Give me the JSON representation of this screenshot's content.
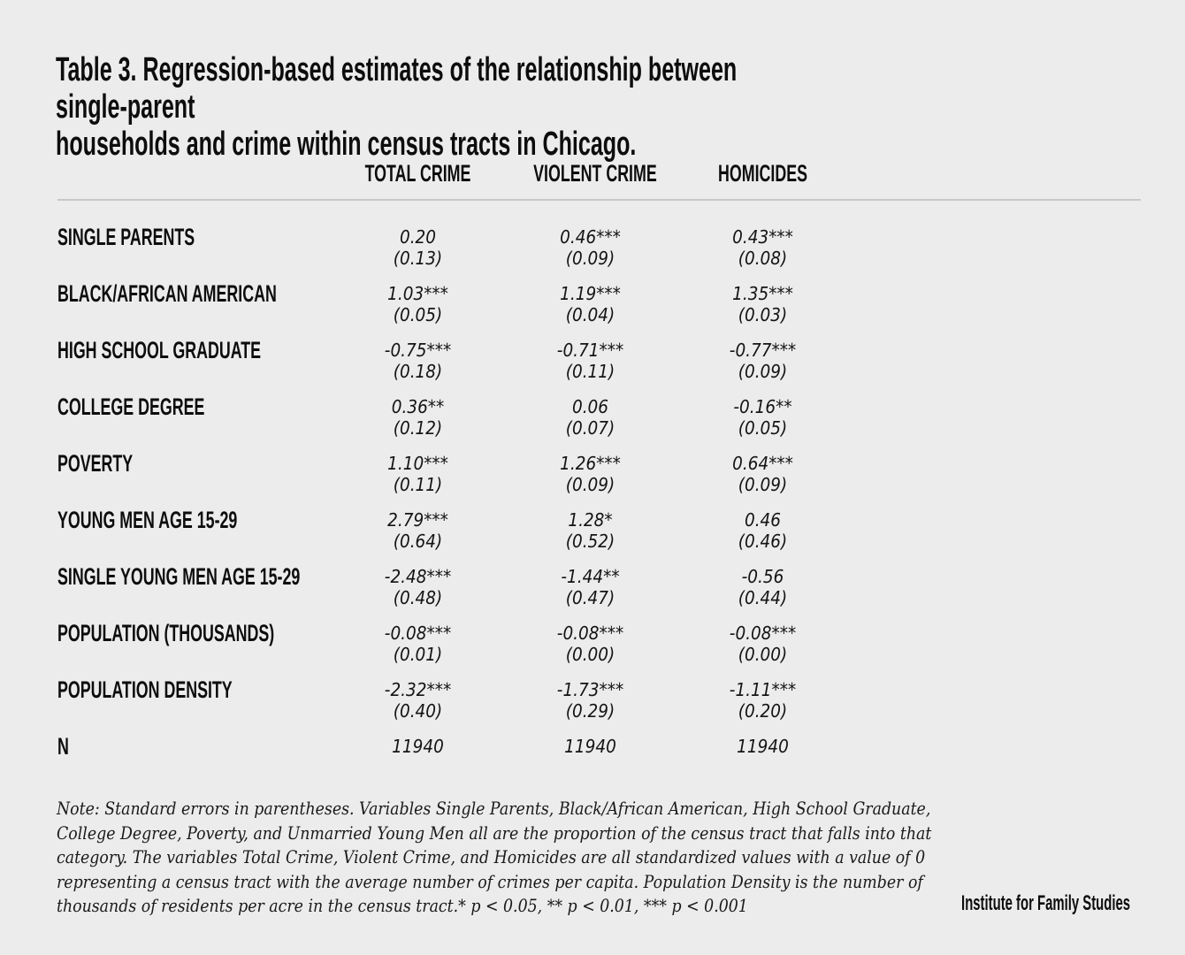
{
  "page": {
    "background_color": "#ECECEC",
    "text_color": "#0D0D0D",
    "divider_color": "#C8C8C8"
  },
  "title": "Table 3. Regression-based estimates of the relationship between single-parent\nhouseholds and crime within census tracts in Chicago.",
  "table": {
    "columns": [
      "TOTAL CRIME",
      "VIOLENT CRIME",
      "HOMICIDES"
    ],
    "rows": [
      {
        "label": "SINGLE PARENTS",
        "cells": [
          {
            "coef": "0.20",
            "se": "(0.13)"
          },
          {
            "coef": "0.46***",
            "se": "(0.09)"
          },
          {
            "coef": "0.43***",
            "se": "(0.08)"
          }
        ]
      },
      {
        "label": "BLACK/AFRICAN AMERICAN",
        "cells": [
          {
            "coef": "1.03***",
            "se": "(0.05)"
          },
          {
            "coef": "1.19***",
            "se": "(0.04)"
          },
          {
            "coef": "1.35***",
            "se": "(0.03)"
          }
        ]
      },
      {
        "label": "HIGH SCHOOL GRADUATE",
        "cells": [
          {
            "coef": "-0.75***",
            "se": "(0.18)"
          },
          {
            "coef": "-0.71***",
            "se": "(0.11)"
          },
          {
            "coef": "-0.77***",
            "se": "(0.09)"
          }
        ]
      },
      {
        "label": "COLLEGE DEGREE",
        "cells": [
          {
            "coef": "0.36**",
            "se": "(0.12)"
          },
          {
            "coef": "0.06",
            "se": "(0.07)"
          },
          {
            "coef": "-0.16**",
            "se": "(0.05)"
          }
        ]
      },
      {
        "label": "POVERTY",
        "cells": [
          {
            "coef": "1.10***",
            "se": "(0.11)"
          },
          {
            "coef": "1.26***",
            "se": "(0.09)"
          },
          {
            "coef": "0.64***",
            "se": "(0.09)"
          }
        ]
      },
      {
        "label": "YOUNG MEN AGE 15-29",
        "cells": [
          {
            "coef": "2.79***",
            "se": "(0.64)"
          },
          {
            "coef": "1.28*",
            "se": "(0.52)"
          },
          {
            "coef": "0.46",
            "se": "(0.46)"
          }
        ]
      },
      {
        "label": "SINGLE YOUNG MEN AGE 15-29",
        "cells": [
          {
            "coef": "-2.48***",
            "se": "(0.48)"
          },
          {
            "coef": "-1.44**",
            "se": "(0.47)"
          },
          {
            "coef": "-0.56",
            "se": "(0.44)"
          }
        ]
      },
      {
        "label": "POPULATION (THOUSANDS)",
        "cells": [
          {
            "coef": "-0.08***",
            "se": "(0.01)"
          },
          {
            "coef": "-0.08***",
            "se": "(0.00)"
          },
          {
            "coef": "-0.08***",
            "se": "(0.00)"
          }
        ]
      },
      {
        "label": "POPULATION DENSITY",
        "cells": [
          {
            "coef": "-2.32***",
            "se": "(0.40)"
          },
          {
            "coef": "-1.73***",
            "se": "(0.29)"
          },
          {
            "coef": "-1.11***",
            "se": "(0.20)"
          }
        ]
      }
    ],
    "n_row": {
      "label": "N",
      "values": [
        "11940",
        "11940",
        "11940"
      ]
    }
  },
  "note": "Note: Standard errors in parentheses. Variables Single Parents, Black/African American, High School Graduate,\nCollege Degree, Poverty, and Unmarried Young Men all are the proportion of the census tract that falls into that\ncategory. The variables Total Crime, Violent Crime, and Homicides are all standardized values with a value of 0\nrepresenting a census tract with the average number of crimes per capita. Population Density is the number of\nthousands of residents per acre in the census tract.* p < 0.05, ** p < 0.01, *** p < 0.001",
  "footer": {
    "brand": "Institute for Family Studies"
  },
  "chart_data": {
    "type": "table",
    "title": "Table 3. Regression-based estimates of the relationship between single-parent households and crime within census tracts in Chicago.",
    "columns": [
      "",
      "TOTAL CRIME",
      "VIOLENT CRIME",
      "HOMICIDES"
    ],
    "rows": [
      [
        "SINGLE PARENTS",
        "0.20 (0.13)",
        "0.46*** (0.09)",
        "0.43*** (0.08)"
      ],
      [
        "BLACK/AFRICAN AMERICAN",
        "1.03*** (0.05)",
        "1.19*** (0.04)",
        "1.35*** (0.03)"
      ],
      [
        "HIGH SCHOOL GRADUATE",
        "-0.75*** (0.18)",
        "-0.71*** (0.11)",
        "-0.77*** (0.09)"
      ],
      [
        "COLLEGE DEGREE",
        "0.36** (0.12)",
        "0.06 (0.07)",
        "-0.16** (0.05)"
      ],
      [
        "POVERTY",
        "1.10*** (0.11)",
        "1.26*** (0.09)",
        "0.64*** (0.09)"
      ],
      [
        "YOUNG MEN AGE 15-29",
        "2.79*** (0.64)",
        "1.28* (0.52)",
        "0.46 (0.46)"
      ],
      [
        "SINGLE YOUNG MEN AGE 15-29",
        "-2.48*** (0.48)",
        "-1.44** (0.47)",
        "-0.56 (0.44)"
      ],
      [
        "POPULATION (THOUSANDS)",
        "-0.08*** (0.01)",
        "-0.08*** (0.00)",
        "-0.08*** (0.00)"
      ],
      [
        "POPULATION DENSITY",
        "-2.32*** (0.40)",
        "-1.73*** (0.29)",
        "-1.11*** (0.20)"
      ],
      [
        "N",
        "11940",
        "11940",
        "11940"
      ]
    ]
  }
}
